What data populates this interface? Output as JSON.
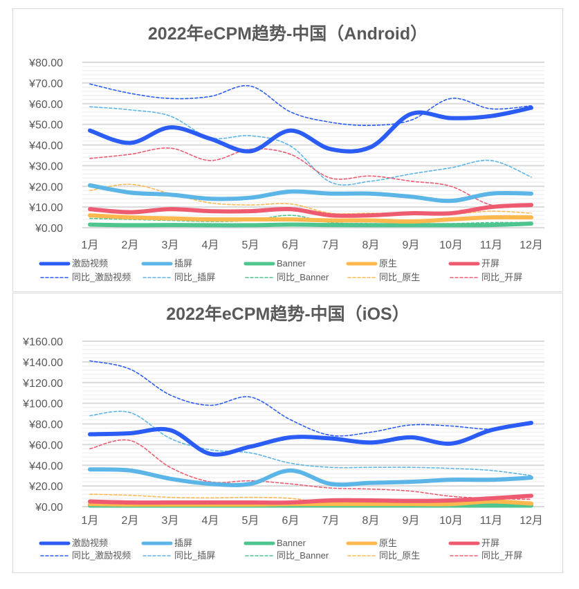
{
  "chart_data": [
    {
      "type": "line",
      "title": "2022年eCPM趋势-中国（Android）",
      "categories": [
        "1月",
        "2月",
        "3月",
        "4月",
        "5月",
        "6月",
        "7月",
        "8月",
        "9月",
        "10月",
        "11月",
        "12月"
      ],
      "ylim": [
        0,
        80
      ],
      "yticks": [
        "¥0.00",
        "¥10.00",
        "¥20.00",
        "¥30.00",
        "¥40.00",
        "¥50.00",
        "¥60.00",
        "¥70.00",
        "¥80.00"
      ],
      "grid": true,
      "legend": "bottom",
      "series": [
        {
          "name": "激励视频",
          "color": "#2b5cf6",
          "style": "solid",
          "values": [
            47,
            41,
            48.5,
            43,
            37,
            47,
            38,
            39,
            55,
            53,
            54,
            58
          ]
        },
        {
          "name": "插屏",
          "color": "#5bb5e7",
          "style": "solid",
          "values": [
            20.5,
            17,
            16,
            14,
            14.5,
            17.5,
            16.5,
            16.5,
            15,
            13,
            16.5,
            16.5
          ]
        },
        {
          "name": "Banner",
          "color": "#4ec48e",
          "style": "solid",
          "values": [
            1.5,
            1.2,
            1.3,
            1.2,
            1.2,
            1.5,
            1.3,
            1.2,
            1.2,
            1.2,
            1.3,
            2
          ]
        },
        {
          "name": "原生",
          "color": "#ffb84e",
          "style": "solid",
          "values": [
            6,
            5,
            4.5,
            4,
            4,
            4,
            3.5,
            3.5,
            3,
            4,
            5,
            5
          ]
        },
        {
          "name": "开屏",
          "color": "#ee5b70",
          "style": "solid",
          "values": [
            9,
            7.5,
            9,
            8,
            8,
            9,
            6,
            6,
            7,
            7,
            10,
            11
          ]
        },
        {
          "name": "同比_激励视频",
          "color": "#2b5cf6",
          "style": "dashed",
          "values": [
            69.5,
            65,
            62.5,
            63.5,
            68.5,
            56,
            51,
            49.5,
            52,
            62.5,
            57.5,
            59
          ]
        },
        {
          "name": "同比_插屏",
          "color": "#5bb5e7",
          "style": "dashed",
          "values": [
            58.5,
            57,
            54,
            43.5,
            44.5,
            39.5,
            22,
            22.5,
            26,
            29,
            32.5,
            24.5
          ]
        },
        {
          "name": "同比_Banner",
          "color": "#4ec48e",
          "style": "dashed",
          "values": [
            4.5,
            4,
            3.5,
            3,
            3.5,
            6,
            2.5,
            2,
            2,
            2,
            2.5,
            2.5
          ]
        },
        {
          "name": "同比_原生",
          "color": "#ffb84e",
          "style": "dashed",
          "values": [
            18,
            21,
            16.5,
            12,
            11,
            11.5,
            7,
            7,
            6.5,
            6.5,
            8,
            7
          ]
        },
        {
          "name": "同比_开屏",
          "color": "#ee5b70",
          "style": "dashed",
          "values": [
            33.5,
            35.5,
            38.5,
            32.5,
            38,
            35.5,
            24,
            25,
            22.5,
            20,
            11,
            11
          ]
        }
      ]
    },
    {
      "type": "line",
      "title": "2022年eCPM趋势-中国（iOS）",
      "categories": [
        "1月",
        "2月",
        "3月",
        "4月",
        "5月",
        "6月",
        "7月",
        "8月",
        "9月",
        "10月",
        "11月",
        "12月"
      ],
      "ylim": [
        0,
        160
      ],
      "yticks": [
        "¥0.00",
        "¥20.00",
        "¥40.00",
        "¥60.00",
        "¥80.00",
        "¥100.00",
        "¥120.00",
        "¥140.00",
        "¥160.00"
      ],
      "grid": true,
      "legend": "bottom",
      "series": [
        {
          "name": "激励视频",
          "color": "#2b5cf6",
          "style": "solid",
          "values": [
            70,
            71,
            74,
            51,
            58,
            67,
            66,
            62,
            67,
            61,
            74,
            81
          ]
        },
        {
          "name": "插屏",
          "color": "#5bb5e7",
          "style": "solid",
          "values": [
            36,
            35,
            27,
            22,
            22,
            35,
            22,
            23,
            24,
            26,
            26,
            28
          ]
        },
        {
          "name": "Banner",
          "color": "#4ec48e",
          "style": "solid",
          "values": [
            1,
            1,
            1,
            1,
            1,
            1,
            1,
            1,
            1,
            1,
            1,
            1
          ]
        },
        {
          "name": "原生",
          "color": "#ffb84e",
          "style": "solid",
          "values": [
            2.5,
            2,
            2,
            2,
            2,
            2.5,
            2.5,
            2.5,
            2.5,
            2.5,
            5,
            3
          ]
        },
        {
          "name": "开屏",
          "color": "#ee5b70",
          "style": "solid",
          "values": [
            5,
            4,
            4,
            4,
            4,
            4,
            6,
            6,
            5.5,
            6,
            8,
            10.5
          ]
        },
        {
          "name": "同比_激励视频",
          "color": "#2b5cf6",
          "style": "dashed",
          "values": [
            141,
            133,
            108,
            98,
            106,
            84,
            69,
            72,
            79,
            78,
            75,
            80
          ]
        },
        {
          "name": "同比_插屏",
          "color": "#5bb5e7",
          "style": "dashed",
          "values": [
            88,
            91,
            66,
            55,
            52,
            42,
            38,
            38,
            38,
            37,
            35,
            30
          ]
        },
        {
          "name": "同比_Banner",
          "color": "#4ec48e",
          "style": "dashed",
          "values": [
            4,
            3,
            3,
            2,
            2,
            4,
            2,
            2,
            2,
            2,
            2,
            2
          ]
        },
        {
          "name": "同比_原生",
          "color": "#ffb84e",
          "style": "dashed",
          "values": [
            12,
            11,
            9,
            8.5,
            9,
            8,
            3,
            3,
            3,
            3,
            3,
            3
          ]
        },
        {
          "name": "同比_开屏",
          "color": "#ee5b70",
          "style": "dashed",
          "values": [
            56,
            64,
            38,
            24,
            25,
            22,
            18,
            17,
            15,
            10,
            8,
            7
          ]
        }
      ]
    }
  ]
}
